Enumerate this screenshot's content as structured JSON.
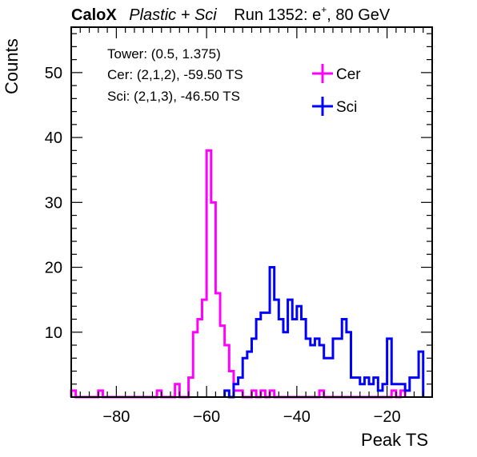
{
  "chart_data": {
    "type": "histogram",
    "title": {
      "experiment": "CaloX",
      "detector": "Plastic + Sci",
      "run": "Run 1352: e",
      "run_sup": "+",
      "energy": ", 80 GeV"
    },
    "xlabel": "Peak TS",
    "ylabel": "Counts",
    "xlim": [
      -90,
      -10
    ],
    "ylim": [
      0,
      57
    ],
    "bin_width": 1,
    "x_ticks": [
      -80,
      -60,
      -40,
      -20
    ],
    "y_ticks": [
      10,
      20,
      30,
      40,
      50
    ],
    "info": [
      "Tower: (0.5, 1.375)",
      "Cer: (2,1,2), -59.50 TS",
      "Sci: (2,1,3), -46.50 TS"
    ],
    "legend_placement": "top-right",
    "series": [
      {
        "name": "Cer",
        "color": "#ff00ff",
        "bins": [
          [
            -90,
            1
          ],
          [
            -84,
            1
          ],
          [
            -71,
            1
          ],
          [
            -67,
            2
          ],
          [
            -64,
            3
          ],
          [
            -63,
            10
          ],
          [
            -62,
            12
          ],
          [
            -61,
            15
          ],
          [
            -60,
            38
          ],
          [
            -59,
            30
          ],
          [
            -58,
            16
          ],
          [
            -57,
            11
          ],
          [
            -56,
            8
          ],
          [
            -55,
            4
          ],
          [
            -54,
            1
          ],
          [
            -53,
            1
          ],
          [
            -50,
            1
          ],
          [
            -48,
            1
          ],
          [
            -46,
            1
          ],
          [
            -35,
            1
          ],
          [
            -19,
            1
          ],
          [
            -17,
            1
          ]
        ]
      },
      {
        "name": "Sci",
        "color": "#0000ff",
        "bins": [
          [
            -56,
            1
          ],
          [
            -54,
            2
          ],
          [
            -53,
            3
          ],
          [
            -52,
            6
          ],
          [
            -51,
            7
          ],
          [
            -50,
            9
          ],
          [
            -49,
            12
          ],
          [
            -48,
            13
          ],
          [
            -47,
            13
          ],
          [
            -46,
            20
          ],
          [
            -45,
            15
          ],
          [
            -44,
            12
          ],
          [
            -43,
            10
          ],
          [
            -42,
            15
          ],
          [
            -41,
            12
          ],
          [
            -40,
            14
          ],
          [
            -39,
            12
          ],
          [
            -38,
            9
          ],
          [
            -37,
            8
          ],
          [
            -36,
            9
          ],
          [
            -35,
            8
          ],
          [
            -34,
            6
          ],
          [
            -33,
            6
          ],
          [
            -32,
            9
          ],
          [
            -31,
            9
          ],
          [
            -30,
            12
          ],
          [
            -29,
            10
          ],
          [
            -28,
            3
          ],
          [
            -27,
            3
          ],
          [
            -26,
            2
          ],
          [
            -25,
            3
          ],
          [
            -24,
            2
          ],
          [
            -23,
            3
          ],
          [
            -22,
            1
          ],
          [
            -21,
            2
          ],
          [
            -20,
            9
          ],
          [
            -19,
            2
          ],
          [
            -18,
            2
          ],
          [
            -17,
            2
          ],
          [
            -16,
            1
          ],
          [
            -15,
            3
          ],
          [
            -14,
            3
          ],
          [
            -13,
            7
          ]
        ]
      }
    ]
  }
}
